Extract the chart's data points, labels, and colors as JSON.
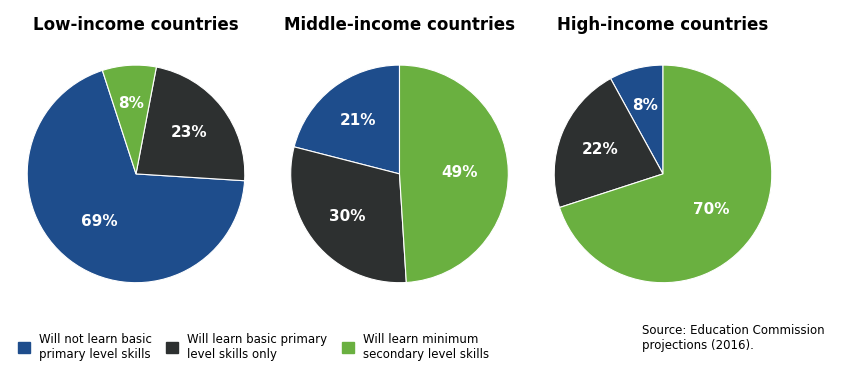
{
  "charts": [
    {
      "title": "Low-income countries",
      "values": [
        69,
        23,
        8
      ],
      "labels": [
        "69%",
        "23%",
        "8%"
      ],
      "colors": [
        "#1e4d8c",
        "#2d3030",
        "#6ab040"
      ],
      "startangle": 108
    },
    {
      "title": "Middle-income countries",
      "values": [
        21,
        30,
        49
      ],
      "labels": [
        "21%",
        "30%",
        "49%"
      ],
      "colors": [
        "#1e4d8c",
        "#2d3030",
        "#6ab040"
      ],
      "startangle": 90
    },
    {
      "title": "High-income countries",
      "values": [
        8,
        22,
        70
      ],
      "labels": [
        "8%",
        "22%",
        "70%"
      ],
      "colors": [
        "#1e4d8c",
        "#2d3030",
        "#6ab040"
      ],
      "startangle": 90
    }
  ],
  "legend": [
    {
      "label": "Will not learn basic\nprimary level skills",
      "color": "#1e4d8c"
    },
    {
      "label": "Will learn basic primary\nlevel skills only",
      "color": "#2d3030"
    },
    {
      "label": "Will learn minimum\nsecondary level skills",
      "color": "#6ab040"
    }
  ],
  "source_text": "Source: Education Commission\nprojections (2016).",
  "background_color": "#ffffff",
  "text_color": "white",
  "label_fontsize": 11,
  "title_fontsize": 12
}
